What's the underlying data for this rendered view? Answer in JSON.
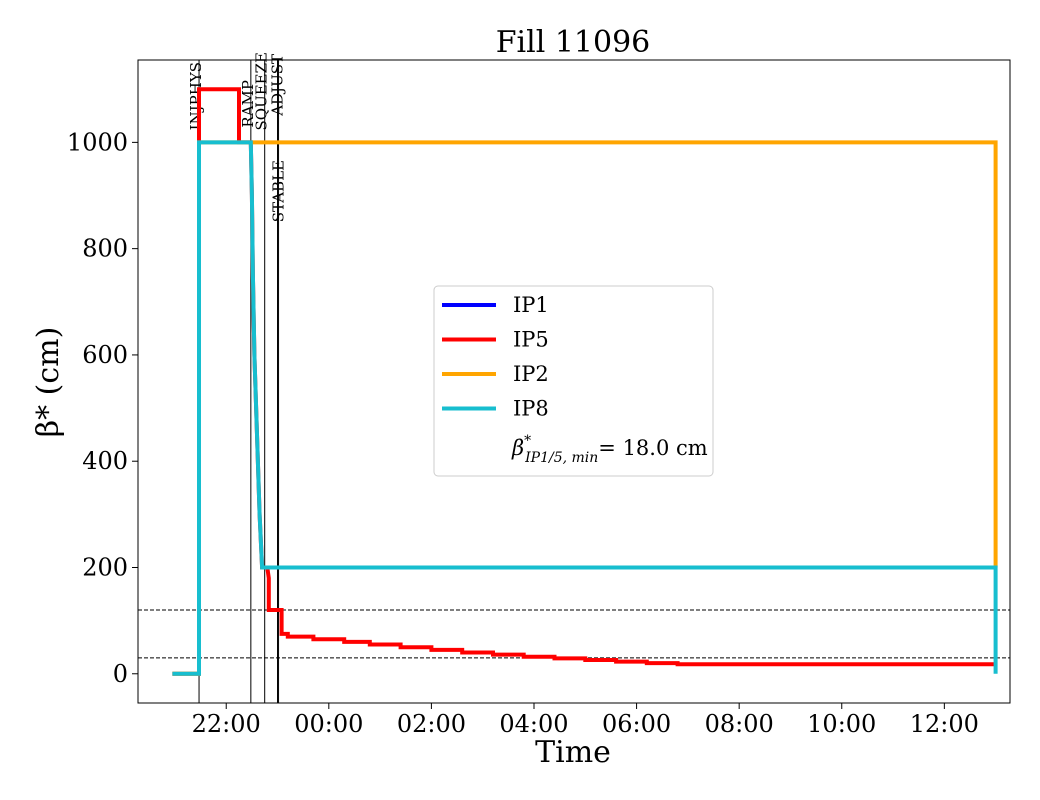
{
  "chart_data": {
    "type": "line",
    "title": "Fill 11096",
    "xlabel": "Time",
    "ylabel": "β* (cm)",
    "x_ticks": [
      "22:00",
      "00:00",
      "02:00",
      "04:00",
      "06:00",
      "08:00",
      "10:00",
      "12:00"
    ],
    "x_tick_hours": [
      22,
      24,
      26,
      28,
      30,
      32,
      34,
      36
    ],
    "xlim_hours": [
      20.28,
      37.28
    ],
    "y_ticks": [
      0,
      200,
      400,
      600,
      800,
      1000
    ],
    "ylim": [
      -55,
      1155
    ],
    "grid": false,
    "legend_position": "center",
    "beta_min_label": {
      "symbol": "β",
      "sup": "*",
      "sub": "IP1/5, min",
      "value": "= 18.0 cm"
    },
    "phases": [
      {
        "name": "INJPHYS",
        "hour": 21.47
      },
      {
        "name": "RAMP",
        "hour": 22.48
      },
      {
        "name": "SQUEEZE",
        "hour": 22.75
      },
      {
        "name": "ADJUST",
        "hour": 23.0
      },
      {
        "name": "STABLE",
        "hour": 23.02
      }
    ],
    "reference_lines": [
      120,
      30
    ],
    "series": [
      {
        "name": "IP1",
        "color": "#0000ff",
        "x": [],
        "y": []
      },
      {
        "name": "IP5",
        "color": "#ff0000",
        "x": [
          20.95,
          21.47,
          21.47,
          22.25,
          22.25,
          22.48,
          22.5,
          22.52,
          22.55,
          22.6,
          22.65,
          22.7,
          22.75,
          22.8,
          22.83,
          22.83,
          23.08,
          23.08,
          23.2,
          23.2,
          23.7,
          23.7,
          24.3,
          24.3,
          24.8,
          24.8,
          25.4,
          25.4,
          26.0,
          26.0,
          26.6,
          26.6,
          27.2,
          27.2,
          27.8,
          27.8,
          28.4,
          28.4,
          29.0,
          29.0,
          29.6,
          29.6,
          30.2,
          30.2,
          30.8,
          30.8,
          37.0
        ],
        "y": [
          0,
          0,
          1100,
          1100,
          1000,
          1000,
          900,
          750,
          600,
          450,
          300,
          200,
          200,
          200,
          180,
          120,
          120,
          75,
          75,
          70,
          70,
          65,
          65,
          60,
          60,
          55,
          55,
          50,
          50,
          45,
          45,
          40,
          40,
          36,
          36,
          32,
          32,
          29,
          29,
          26,
          26,
          23,
          23,
          20,
          20,
          18,
          18
        ]
      },
      {
        "name": "IP2",
        "color": "#ffa500",
        "x": [
          20.95,
          21.47,
          21.47,
          37.0,
          37.0
        ],
        "y": [
          0,
          0,
          1000,
          1000,
          200
        ]
      },
      {
        "name": "IP8",
        "color": "#17becf",
        "x": [
          20.95,
          21.47,
          21.47,
          22.48,
          22.5,
          22.52,
          22.55,
          22.6,
          22.65,
          22.7,
          22.75,
          22.8,
          37.0,
          37.0
        ],
        "y": [
          0,
          0,
          1000,
          1000,
          900,
          750,
          600,
          450,
          300,
          200,
          200,
          200,
          200,
          0
        ]
      }
    ]
  }
}
